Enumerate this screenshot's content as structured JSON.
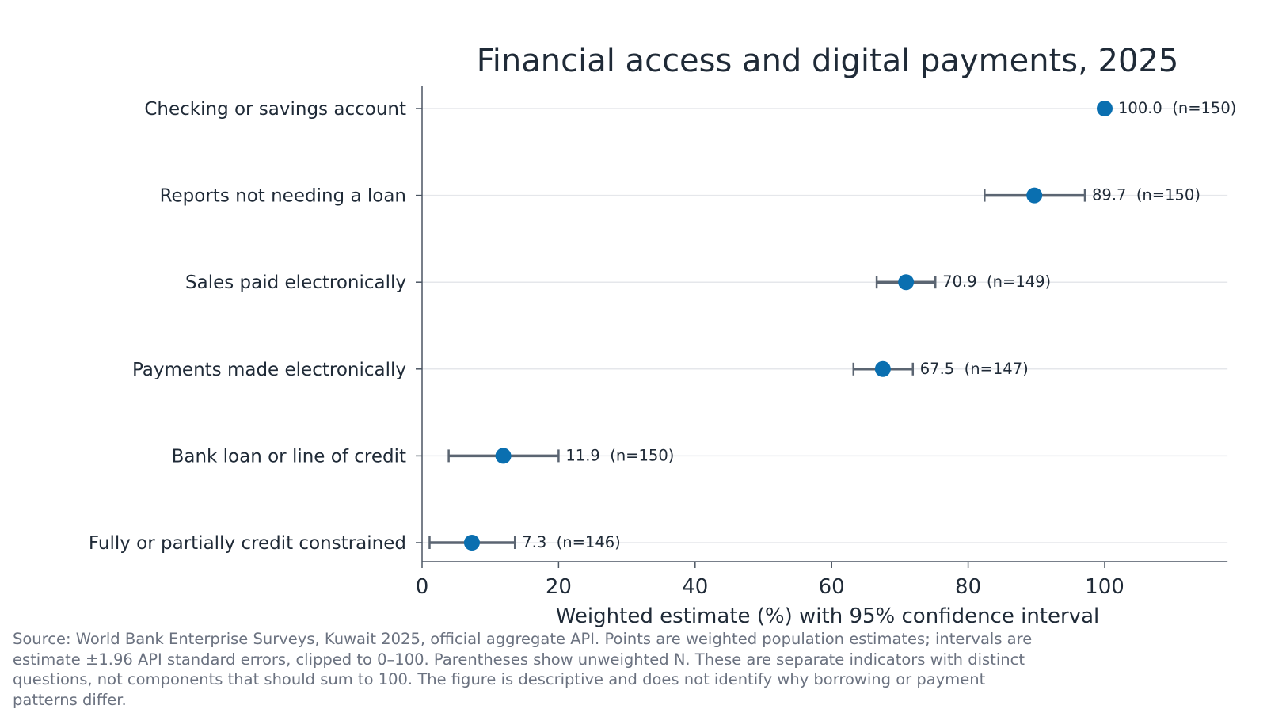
{
  "chart_data": {
    "type": "scatter",
    "title": "Financial access and digital payments, 2025",
    "xlabel": "Weighted estimate (%) with 95% confidence interval",
    "ylabel": "",
    "xlim": [
      0,
      118
    ],
    "xticks": [
      0,
      20,
      40,
      60,
      80,
      100
    ],
    "grid": "horizontal",
    "categories": [
      "Checking or savings account",
      "Reports not needing a loan",
      "Sales paid electronically",
      "Payments made electronically",
      "Bank loan or line of credit",
      "Fully or partially credit constrained"
    ],
    "series": [
      {
        "values": [
          100.0,
          89.7,
          70.9,
          67.5,
          11.9,
          7.3
        ],
        "ci_low": [
          100.0,
          82.4,
          66.6,
          63.2,
          3.9,
          1.1
        ],
        "ci_high": [
          100.0,
          97.1,
          75.2,
          71.9,
          20.0,
          13.6
        ],
        "n": [
          150,
          150,
          149,
          147,
          150,
          146
        ],
        "labels": [
          "100.0  (n=150)",
          "89.7  (n=150)",
          "70.9  (n=149)",
          "67.5  (n=147)",
          "11.9  (n=150)",
          "7.3  (n=146)"
        ]
      }
    ],
    "colors": {
      "point": "#0a6fb0",
      "errorbar": "#5b6572",
      "grid": "#e5e7eb",
      "axis": "#4b5563",
      "text": "#1f2a37"
    }
  },
  "source_note": "Source: World Bank Enterprise Surveys, Kuwait 2025, official aggregate API. Points are weighted population estimates; intervals are estimate ±1.96 API standard errors, clipped to 0–100. Parentheses show unweighted N. These are separate indicators with distinct questions, not components that should sum to 100. The figure is descriptive and does not identify why borrowing or payment patterns differ."
}
